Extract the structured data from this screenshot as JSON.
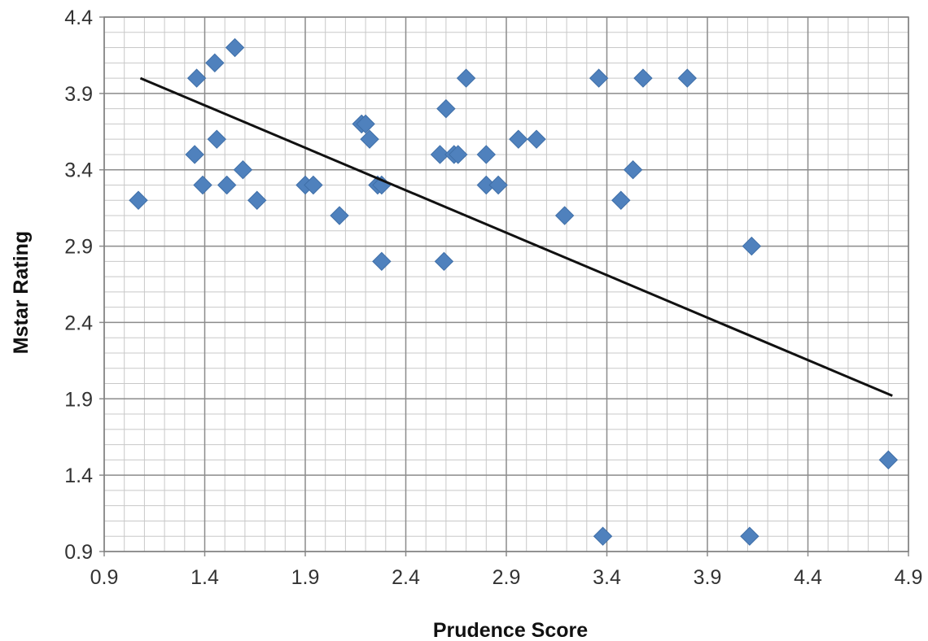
{
  "chart_data": {
    "type": "scatter",
    "title": "",
    "xlabel": "Prudence Score",
    "ylabel": "Mstar Rating",
    "xlim": [
      0.9,
      4.9
    ],
    "ylim": [
      0.9,
      4.4
    ],
    "x_ticks": [
      "0.9",
      "1.4",
      "1.9",
      "2.4",
      "2.9",
      "3.4",
      "3.9",
      "4.4",
      "4.9"
    ],
    "y_ticks": [
      "0.9",
      "1.4",
      "1.9",
      "2.4",
      "2.9",
      "3.4",
      "3.9",
      "4.4"
    ],
    "grid": true,
    "legend": "none",
    "marker": "diamond",
    "marker_color": "#4f81bd",
    "points": [
      {
        "x": 1.07,
        "y": 3.2
      },
      {
        "x": 1.36,
        "y": 4.0
      },
      {
        "x": 1.45,
        "y": 4.1
      },
      {
        "x": 1.55,
        "y": 4.2
      },
      {
        "x": 1.35,
        "y": 3.5
      },
      {
        "x": 1.46,
        "y": 3.6
      },
      {
        "x": 1.39,
        "y": 3.3
      },
      {
        "x": 1.51,
        "y": 3.3
      },
      {
        "x": 1.59,
        "y": 3.4
      },
      {
        "x": 1.66,
        "y": 3.2
      },
      {
        "x": 1.9,
        "y": 3.3
      },
      {
        "x": 1.94,
        "y": 3.3
      },
      {
        "x": 2.07,
        "y": 3.1
      },
      {
        "x": 2.18,
        "y": 3.7
      },
      {
        "x": 2.2,
        "y": 3.7
      },
      {
        "x": 2.22,
        "y": 3.6
      },
      {
        "x": 2.26,
        "y": 3.3
      },
      {
        "x": 2.28,
        "y": 3.3
      },
      {
        "x": 2.28,
        "y": 2.8
      },
      {
        "x": 2.57,
        "y": 3.5
      },
      {
        "x": 2.6,
        "y": 3.8
      },
      {
        "x": 2.64,
        "y": 3.5
      },
      {
        "x": 2.66,
        "y": 3.5
      },
      {
        "x": 2.7,
        "y": 4.0
      },
      {
        "x": 2.59,
        "y": 2.8
      },
      {
        "x": 2.8,
        "y": 3.5
      },
      {
        "x": 2.8,
        "y": 3.3
      },
      {
        "x": 2.86,
        "y": 3.3
      },
      {
        "x": 2.96,
        "y": 3.6
      },
      {
        "x": 3.05,
        "y": 3.6
      },
      {
        "x": 3.19,
        "y": 3.1
      },
      {
        "x": 3.36,
        "y": 4.0
      },
      {
        "x": 3.38,
        "y": 1.0
      },
      {
        "x": 3.47,
        "y": 3.2
      },
      {
        "x": 3.53,
        "y": 3.4
      },
      {
        "x": 3.58,
        "y": 4.0
      },
      {
        "x": 3.8,
        "y": 4.0
      },
      {
        "x": 4.12,
        "y": 2.9
      },
      {
        "x": 4.11,
        "y": 1.0
      },
      {
        "x": 4.8,
        "y": 1.5
      }
    ],
    "trendline": {
      "type": "linear",
      "color": "#111111",
      "x": [
        1.08,
        4.82
      ],
      "y": [
        4.0,
        1.92
      ]
    }
  }
}
